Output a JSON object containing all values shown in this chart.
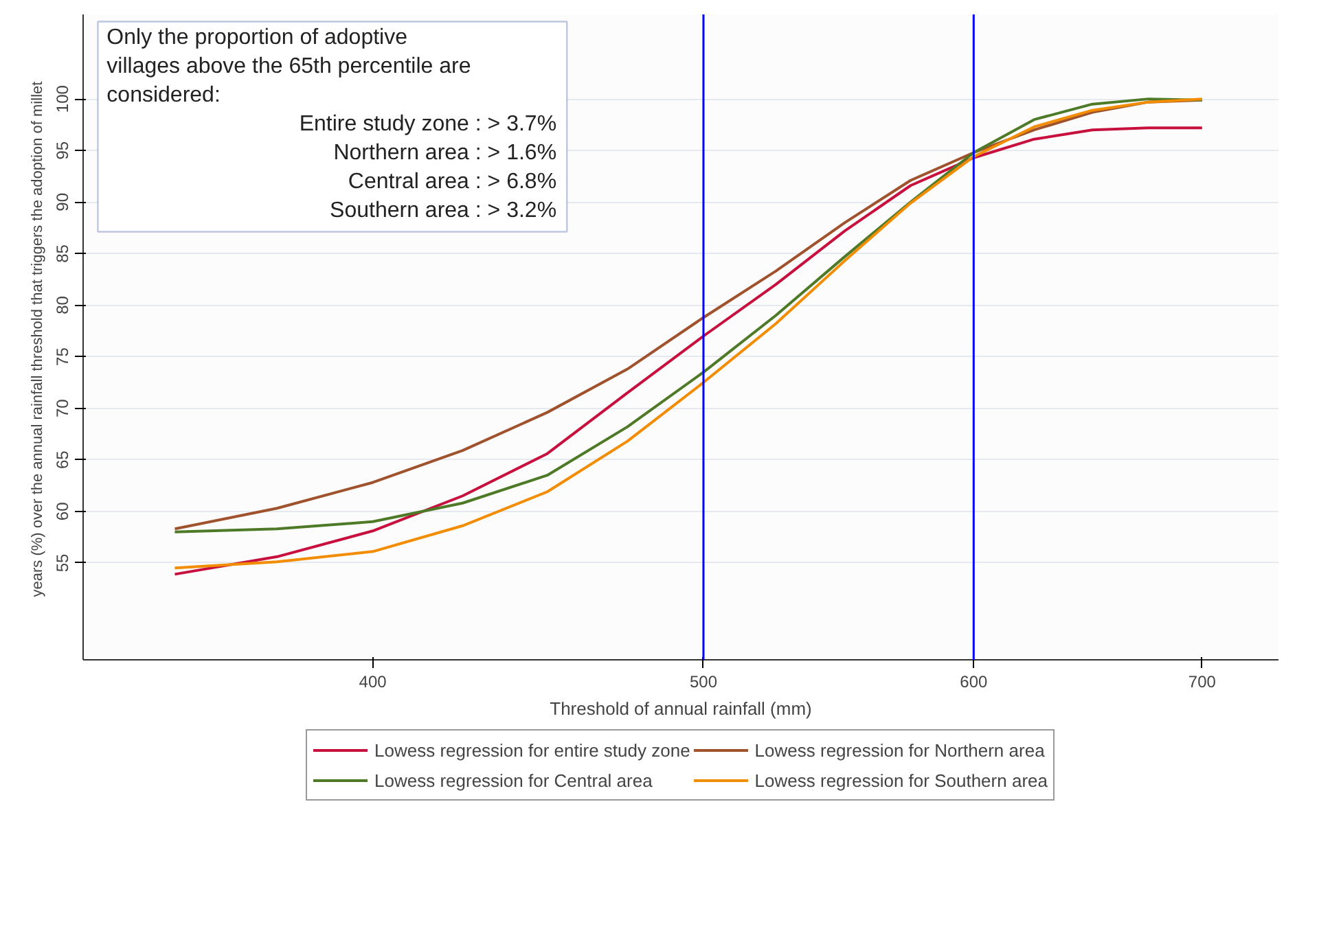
{
  "chart_data": {
    "type": "line",
    "xlabel": "Threshold of annual rainfall (mm)",
    "ylabel": "years (%)  over the annual rainfall threshold that triggers the adoption of millet",
    "log": "x",
    "x": [
      350,
      375,
      400,
      425,
      450,
      475,
      500,
      525,
      550,
      575,
      600,
      625,
      650,
      675,
      700
    ],
    "xlim": [
      329,
      737
    ],
    "xticks": [
      400,
      500,
      600,
      700
    ],
    "ylim": [
      45.6,
      108.2
    ],
    "yticks": [
      55,
      60,
      65,
      70,
      75,
      80,
      85,
      90,
      95,
      100
    ],
    "grid": "y",
    "legend": "bottom",
    "marker": "none",
    "line_style": "solid",
    "series": [
      {
        "name": "Lowess regression for entire study zone",
        "color": "#c8103e",
        "values": [
          53.9,
          55.6,
          58.1,
          61.5,
          65.6,
          71.5,
          77.0,
          82.0,
          87.2,
          91.6,
          94.3,
          96.1,
          97.0,
          97.2,
          97.2
        ]
      },
      {
        "name": "Lowess regression for Northern area",
        "color": "#a0522d",
        "values": [
          58.3,
          60.3,
          62.8,
          65.9,
          69.6,
          73.8,
          78.8,
          83.3,
          88.0,
          92.1,
          94.8,
          97.0,
          98.7,
          99.7,
          99.9
        ]
      },
      {
        "name": "Lowess regression for Central area",
        "color": "#4e7a27",
        "values": [
          58.0,
          58.3,
          59.0,
          60.8,
          63.5,
          68.2,
          73.5,
          79.0,
          84.7,
          90.0,
          94.8,
          98.0,
          99.5,
          100.0,
          99.9
        ]
      },
      {
        "name": "Lowess regression for Southern area",
        "color": "#f28c00",
        "values": [
          54.5,
          55.1,
          56.1,
          58.6,
          61.9,
          66.8,
          72.5,
          78.2,
          84.3,
          89.9,
          94.4,
          97.3,
          98.9,
          99.7,
          100.0
        ]
      }
    ],
    "ref_lines": [
      {
        "axis": "x",
        "value": 500,
        "color": "#0000ff"
      },
      {
        "axis": "x",
        "value": 600,
        "color": "#0000ff"
      }
    ],
    "annotations": [
      "Only the proportion of adoptive villages above the 65th percentile are considered:",
      "Entire study zone : > 3.7%",
      "Northern area : > 1.6%",
      "Central area : > 6.8%",
      "Southern area : > 3.2%"
    ]
  }
}
